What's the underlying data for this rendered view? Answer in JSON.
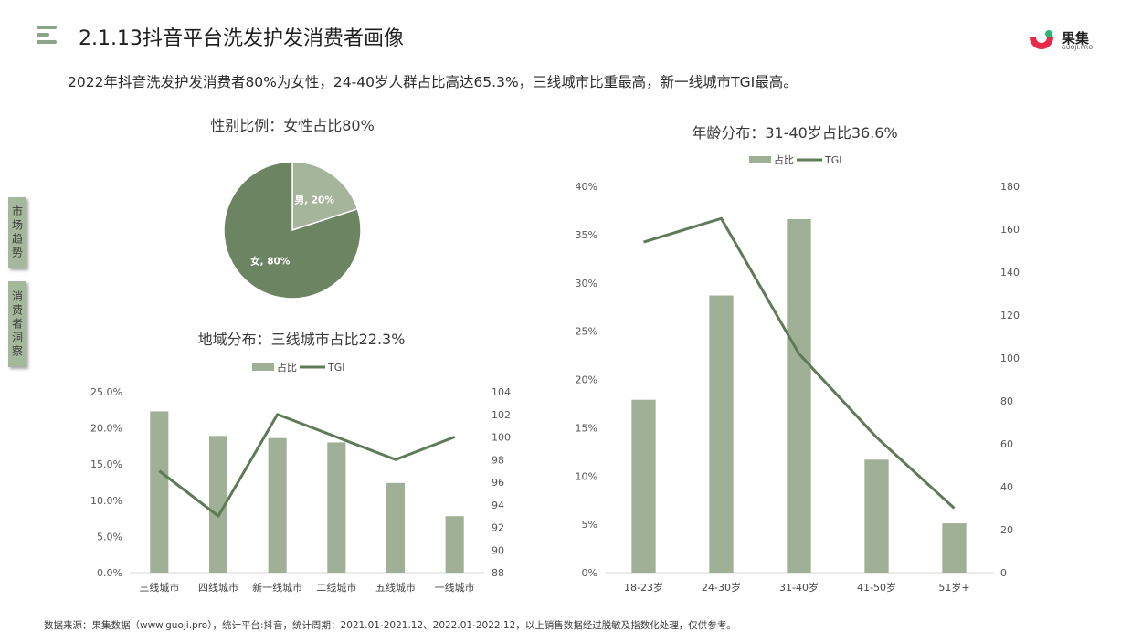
{
  "header": {
    "title": "2.1.13抖音平台洗发护发消费者画像",
    "logo_main": "果集",
    "logo_sub": "GUOJI.PRO"
  },
  "subtitle": "2022年抖音洗发护发消费者80%为女性，24-40岁人群占比高达65.3%，三线城市比重最高，新一线城市TGI最高。",
  "side_tabs": [
    "市场趋势",
    "消费者洞察"
  ],
  "footer": "数据来源：果集数据（www.guoji.pro），统计平台:抖音，统计周期：2021.01-2021.12、2022.01-2022.12，以上销售数据经过脱敏及指数化处理，仅供参考。",
  "colors": {
    "bar": "#9fb097",
    "line": "#5e7a57",
    "pie_female": "#6d8462",
    "pie_male": "#a5b59c",
    "accent": "#8aa58a"
  },
  "chart_data": [
    {
      "type": "pie",
      "title": "性别比例：女性占比80%",
      "slices": [
        {
          "label": "男",
          "value": 20,
          "data_label": "男, 20%"
        },
        {
          "label": "女",
          "value": 80,
          "data_label": "女, 80%"
        }
      ]
    },
    {
      "type": "bar",
      "title": "地域分布：三线城市占比22.3%",
      "legend": [
        "占比",
        "TGI"
      ],
      "legend_placement": "top",
      "categories": [
        "三线城市",
        "四线城市",
        "新一线城市",
        "二线城市",
        "五线城市",
        "一线城市"
      ],
      "series": [
        {
          "name": "占比",
          "type": "bar",
          "axis": "left",
          "values": [
            22.3,
            18.9,
            18.6,
            18.0,
            12.4,
            7.8
          ]
        },
        {
          "name": "TGI",
          "type": "line",
          "axis": "right",
          "values": [
            97,
            93,
            102,
            100,
            98,
            100
          ]
        }
      ],
      "ylim": [
        0,
        25
      ],
      "y_ticks": [
        "0.0%",
        "5.0%",
        "10.0%",
        "15.0%",
        "20.0%",
        "25.0%"
      ],
      "y2lim": [
        88,
        104
      ],
      "y2_ticks": [
        "88",
        "90",
        "92",
        "94",
        "96",
        "98",
        "100",
        "102",
        "104"
      ],
      "grid": false
    },
    {
      "type": "bar",
      "title": "年龄分布：31-40岁占比36.6%",
      "legend": [
        "占比",
        "TGI"
      ],
      "legend_placement": "top",
      "categories": [
        "18-23岁",
        "24-30岁",
        "31-40岁",
        "41-50岁",
        "51岁+"
      ],
      "series": [
        {
          "name": "占比",
          "type": "bar",
          "axis": "left",
          "values": [
            17.9,
            28.7,
            36.6,
            11.7,
            5.1
          ]
        },
        {
          "name": "TGI",
          "type": "line",
          "axis": "right",
          "values": [
            154,
            165,
            102,
            63,
            30
          ]
        }
      ],
      "ylim": [
        0,
        40
      ],
      "y_ticks": [
        "0%",
        "5%",
        "10%",
        "15%",
        "20%",
        "25%",
        "30%",
        "35%",
        "40%"
      ],
      "y2lim": [
        0,
        180
      ],
      "y2_ticks": [
        "0",
        "20",
        "40",
        "60",
        "80",
        "100",
        "120",
        "140",
        "160",
        "180"
      ],
      "grid": false
    }
  ]
}
